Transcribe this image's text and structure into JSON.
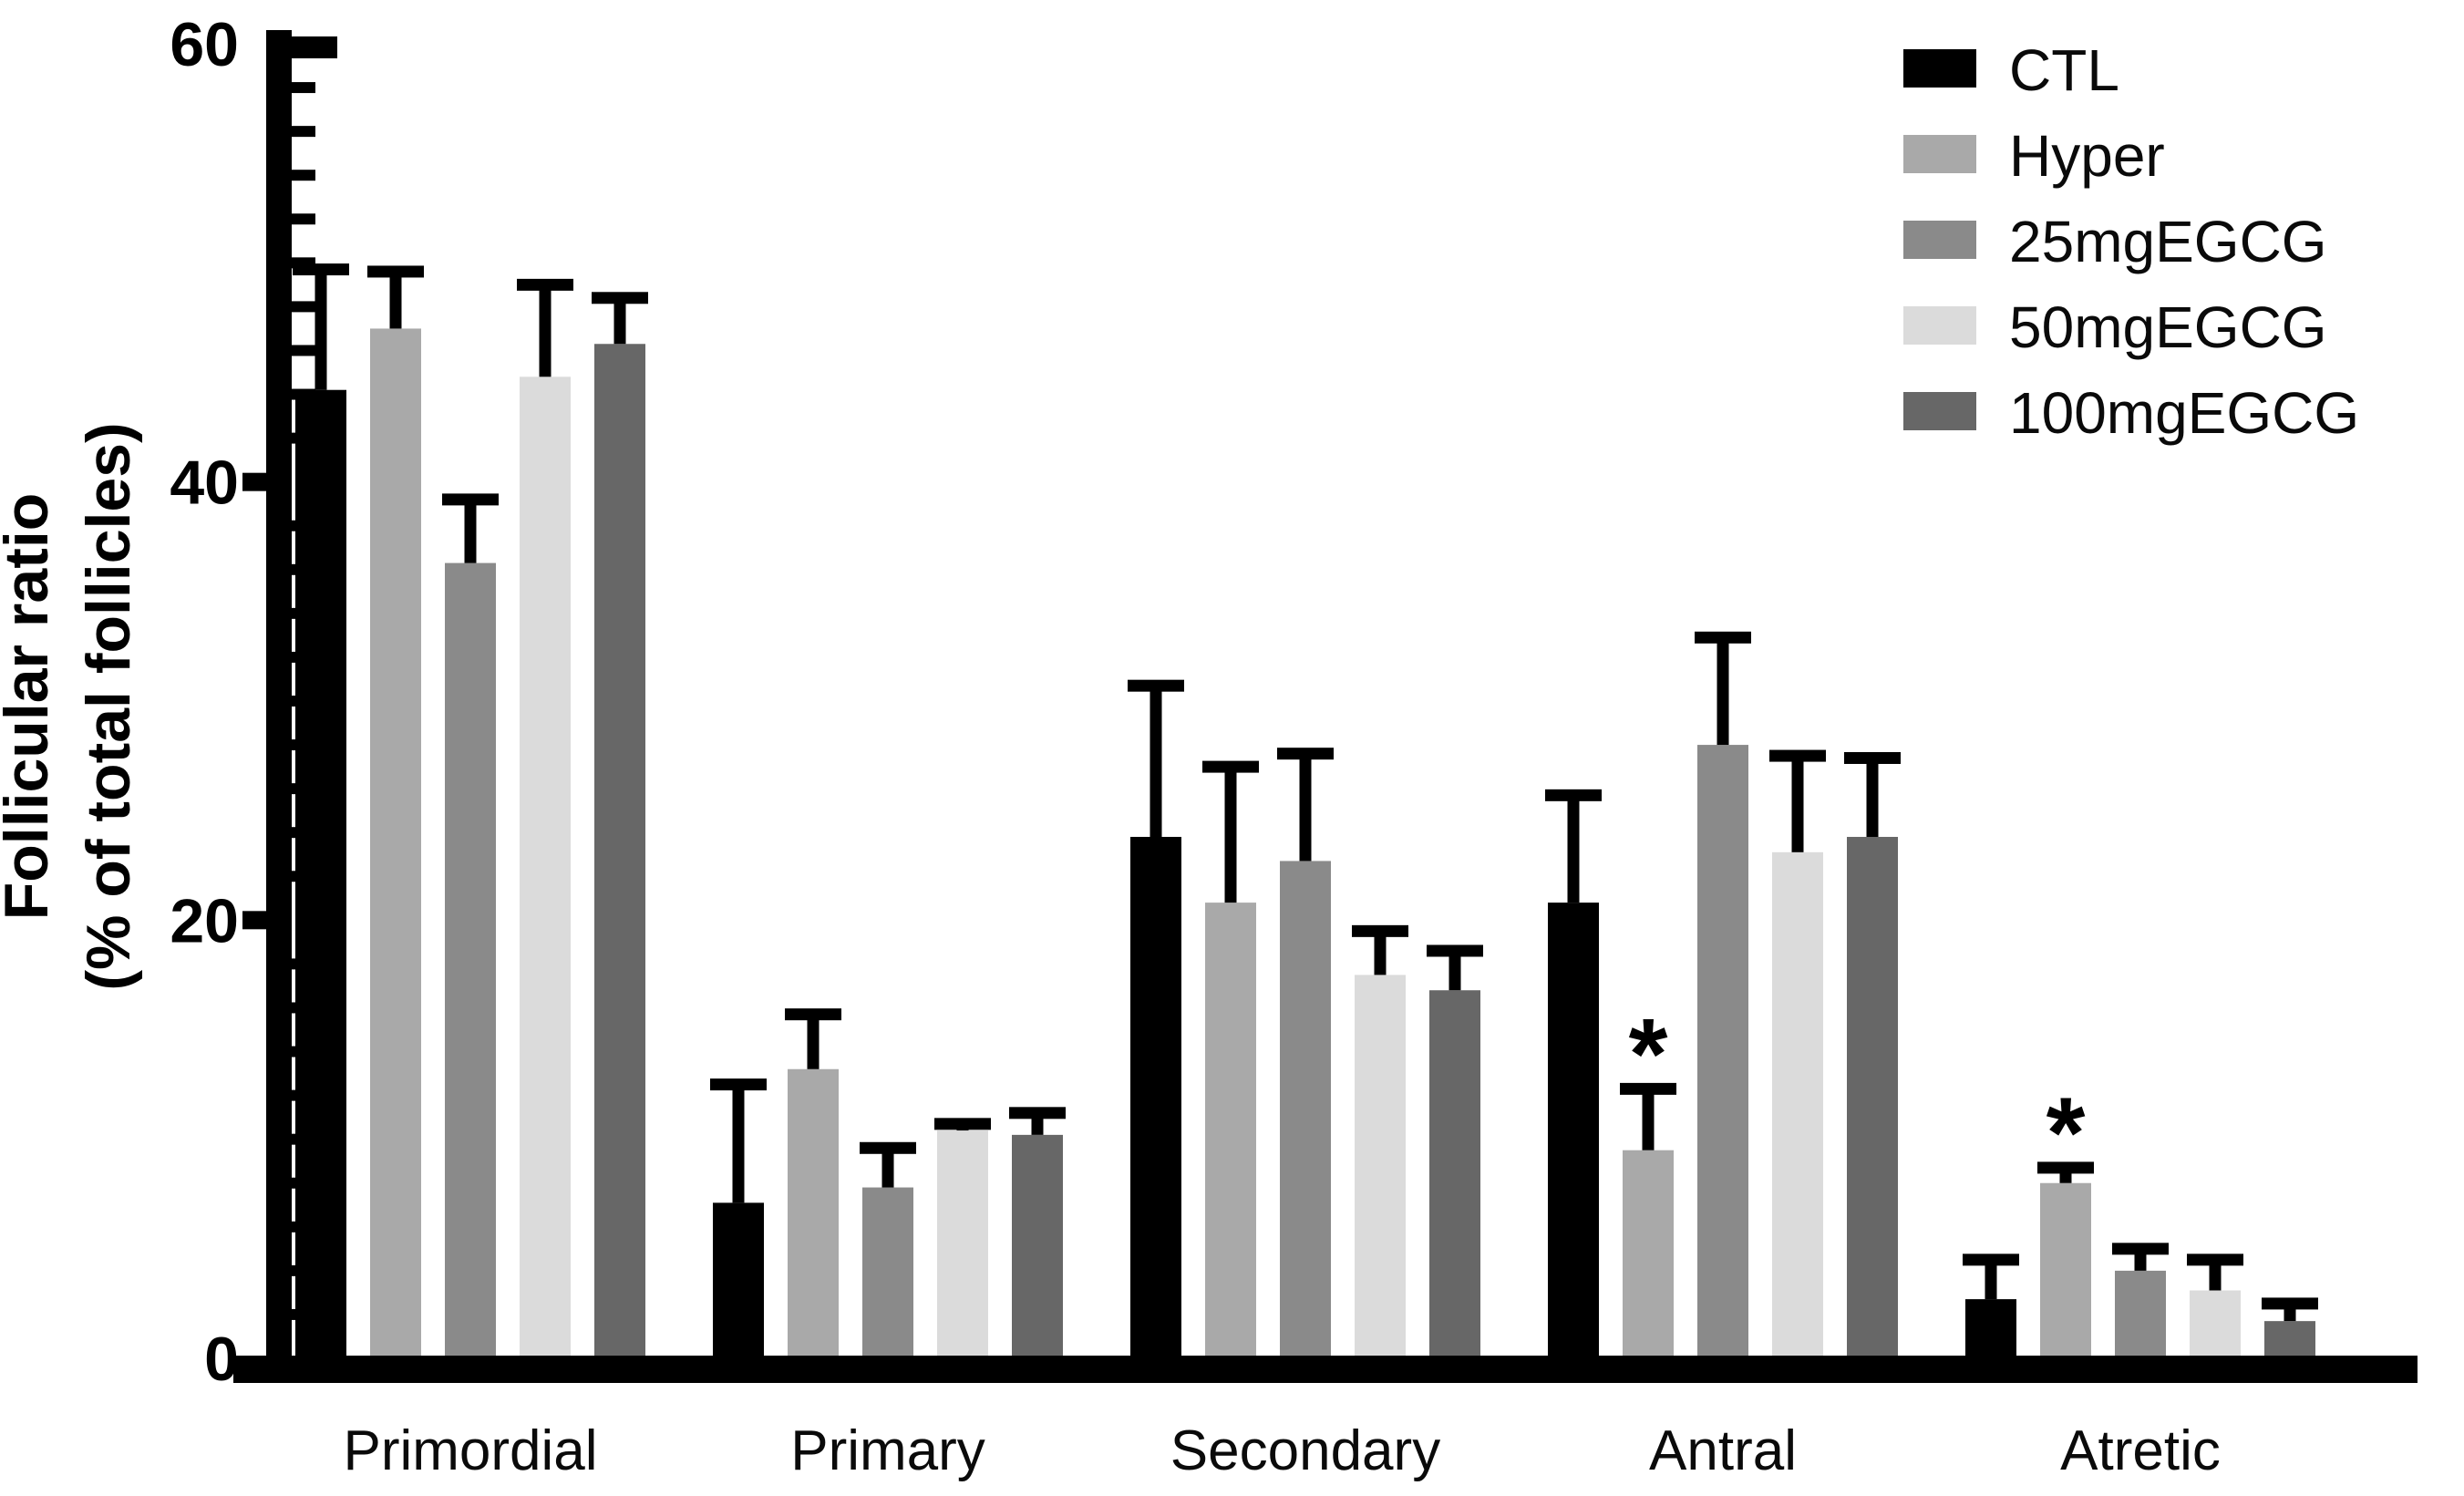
{
  "figure": {
    "background": "#FFFFFF",
    "text_color": "#000000"
  },
  "chart_data": {
    "type": "bar",
    "title": "",
    "ylabel": "Follicular ratio (% of total follicles)",
    "ylabel_lines": [
      "Follicular ratio",
      "(% of total follicles)"
    ],
    "xlabel": "",
    "categories": [
      "Primordial",
      "Primary",
      "Secondary",
      "Antral",
      "Atretic"
    ],
    "series": [
      {
        "name": "CTL",
        "color": "#000000",
        "values": [
          44.2,
          7.1,
          23.8,
          20.8,
          2.7
        ],
        "errors": [
          5.5,
          5.4,
          6.9,
          4.9,
          1.8
        ]
      },
      {
        "name": "Hyper",
        "color": "#A9A9A9",
        "values": [
          47.0,
          13.2,
          20.8,
          9.5,
          8.0
        ],
        "errors": [
          2.6,
          2.5,
          6.2,
          2.8,
          0.7
        ]
      },
      {
        "name": "25mgEGCG",
        "color": "#8A8A8A",
        "values": [
          36.3,
          7.8,
          22.7,
          28.0,
          4.0
        ],
        "errors": [
          2.9,
          1.8,
          4.9,
          4.9,
          1.0
        ]
      },
      {
        "name": "50mgEGCG",
        "color": "#DBDBDB",
        "values": [
          44.8,
          10.4,
          17.5,
          23.1,
          3.1
        ],
        "errors": [
          4.2,
          0.3,
          2.0,
          4.4,
          1.4
        ]
      },
      {
        "name": "100mgEGCG",
        "color": "#676767",
        "values": [
          46.3,
          10.2,
          16.8,
          23.8,
          1.7
        ],
        "errors": [
          2.1,
          1.0,
          1.8,
          3.6,
          0.8
        ]
      }
    ],
    "error_bars": "upper",
    "significance_markers": [
      {
        "category": "Antral",
        "series": "Hyper",
        "label": "*"
      },
      {
        "category": "Atretic",
        "series": "Hyper",
        "label": "*"
      }
    ],
    "ylim": [
      0,
      60
    ],
    "yticks": [
      0,
      20,
      40,
      60
    ],
    "minor_tick_step": 2,
    "grid": false,
    "legend_position": "top-right"
  }
}
